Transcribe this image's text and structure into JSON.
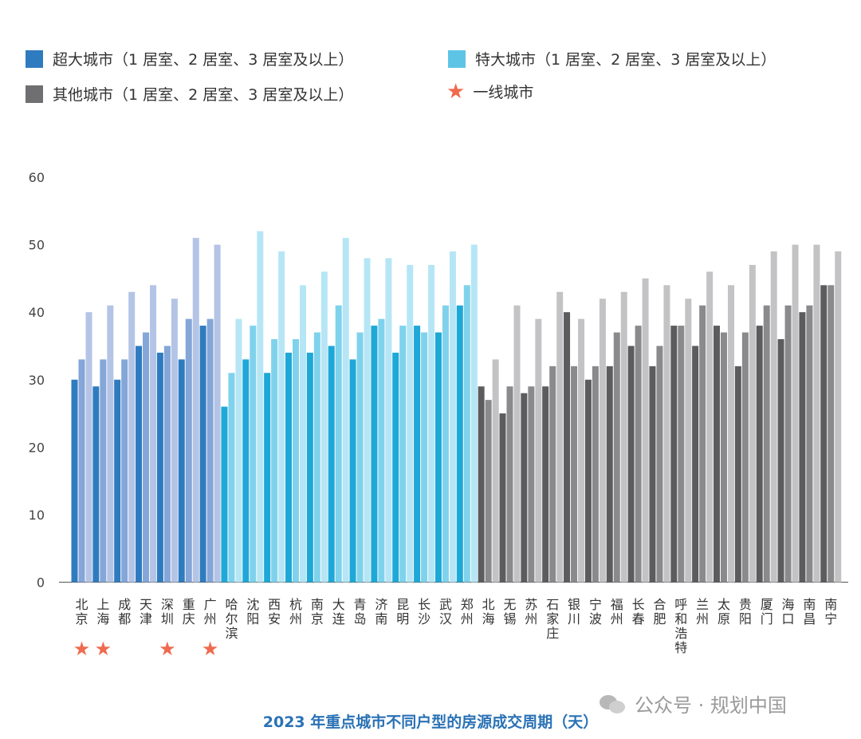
{
  "legend": [
    {
      "label": "超大城市（1 居室、2 居室、3 居室及以上）",
      "color": "#2f7bbf",
      "icon": "square"
    },
    {
      "label": "特大城市（1 居室、2 居室、3 居室及以上）",
      "color": "#5ec4e6",
      "icon": "square"
    },
    {
      "label": "其他城市（1 居室、2 居室、3 居室及以上）",
      "color": "#6f6f71",
      "icon": "square"
    },
    {
      "label": "一线城市",
      "color": "#ef6a4f",
      "icon": "star-icon"
    }
  ],
  "watermark": "公众号 · 规划中国",
  "footer_title": "2023 年重点城市不同户型的房源成交周期（天）",
  "chart_data": {
    "type": "bar",
    "title": "2023 年重点城市不同户型的房源成交周期（天）",
    "ylim": [
      0,
      60
    ],
    "yticks": [
      0,
      10,
      20,
      30,
      40,
      50,
      60
    ],
    "grid": false,
    "legend_position": "top",
    "series": [
      {
        "name": "1 居室"
      },
      {
        "name": "2 居室"
      },
      {
        "name": "3 居室及以上"
      }
    ],
    "groups": [
      {
        "name": "超大城市（1 居室、2 居室、3 居室及以上）",
        "colors": [
          "#2f7bbf",
          "#84a6d8",
          "#b4c4e6"
        ],
        "categories": [
          "北京",
          "上海",
          "成都",
          "天津",
          "深圳",
          "重庆",
          "广州"
        ],
        "values": [
          [
            30,
            33,
            40
          ],
          [
            29,
            33,
            41
          ],
          [
            30,
            33,
            43
          ],
          [
            35,
            37,
            44
          ],
          [
            34,
            35,
            42
          ],
          [
            33,
            39,
            51
          ],
          [
            38,
            39,
            50
          ]
        ]
      },
      {
        "name": "特大城市（1 居室、2 居室、3 居室及以上）",
        "colors": [
          "#1ea8d8",
          "#7fd2ec",
          "#b6e6f5"
        ],
        "categories": [
          "哈尔滨",
          "沈阳",
          "西安",
          "杭州",
          "南京",
          "大连",
          "青岛",
          "济南",
          "昆明",
          "长沙",
          "武汉",
          "郑州"
        ],
        "values": [
          [
            26,
            31,
            39
          ],
          [
            33,
            38,
            52
          ],
          [
            31,
            36,
            49
          ],
          [
            34,
            36,
            44
          ],
          [
            34,
            37,
            46
          ],
          [
            35,
            41,
            51
          ],
          [
            33,
            37,
            48
          ],
          [
            38,
            39,
            48
          ],
          [
            34,
            38,
            47
          ],
          [
            38,
            37,
            47
          ],
          [
            37,
            41,
            49
          ],
          [
            41,
            44,
            50
          ]
        ]
      },
      {
        "name": "其他城市（1 居室、2 居室、3 居室及以上）",
        "colors": [
          "#5c5c5e",
          "#8a8a8c",
          "#c3c3c5"
        ],
        "categories": [
          "北海",
          "无锡",
          "苏州",
          "石家庄",
          "银川",
          "宁波",
          "福州",
          "长春",
          "合肥",
          "呼和浩特",
          "兰州",
          "太原",
          "贵阳",
          "厦门",
          "海口",
          "南昌",
          "南宁"
        ],
        "values": [
          [
            29,
            27,
            33
          ],
          [
            25,
            29,
            41
          ],
          [
            28,
            29,
            39
          ],
          [
            29,
            32,
            43
          ],
          [
            40,
            32,
            39
          ],
          [
            30,
            32,
            42
          ],
          [
            32,
            37,
            43
          ],
          [
            35,
            38,
            45
          ],
          [
            32,
            35,
            44
          ],
          [
            38,
            38,
            42
          ],
          [
            35,
            41,
            46
          ],
          [
            38,
            37,
            44
          ],
          [
            32,
            37,
            47
          ],
          [
            38,
            41,
            49
          ],
          [
            36,
            41,
            50
          ],
          [
            40,
            41,
            50
          ],
          [
            44,
            44,
            49
          ]
        ]
      }
    ],
    "first_tier_cities": [
      "北京",
      "上海",
      "深圳",
      "广州"
    ]
  }
}
